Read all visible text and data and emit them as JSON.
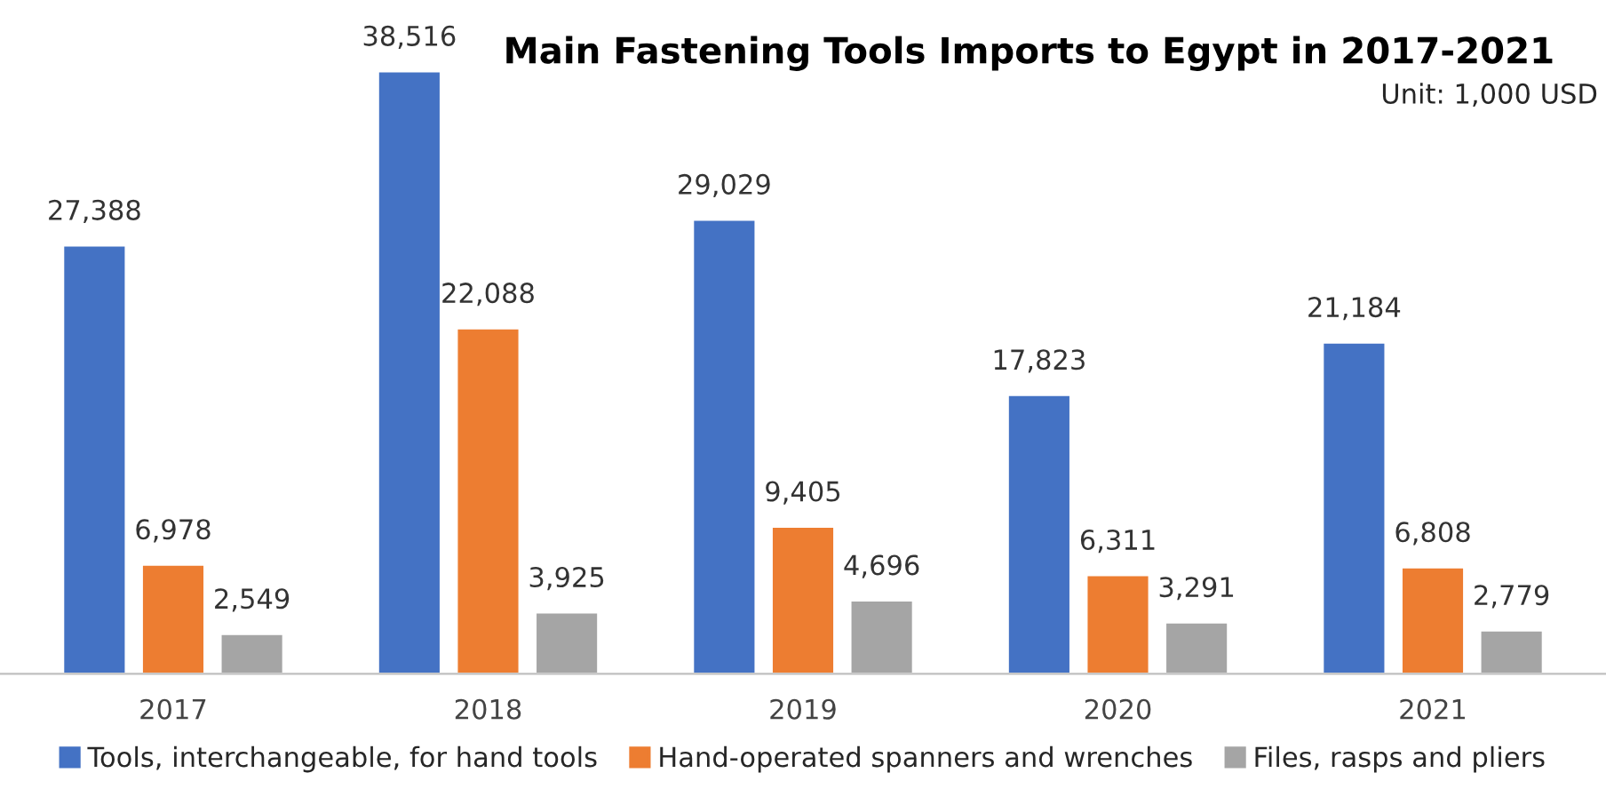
{
  "chart_data": {
    "type": "bar",
    "title": "Main Fastening Tools Imports to Egypt in 2017-2021",
    "annotations": [
      "Unit: 1,000 USD"
    ],
    "categories": [
      "2017",
      "2018",
      "2019",
      "2020",
      "2021"
    ],
    "series": [
      {
        "name": "Tools, interchangeable, for hand tools",
        "color": "#4472c4",
        "values": [
          27388,
          38516,
          29029,
          17823,
          21184
        ],
        "value_labels": [
          "27,388",
          "38,516",
          "29,029",
          "17,823",
          "21,184"
        ]
      },
      {
        "name": "Hand-operated spanners and wrenches",
        "color": "#ed7d31",
        "values": [
          6978,
          22088,
          9405,
          6311,
          6808
        ],
        "value_labels": [
          "6,978",
          "22,088",
          "9,405",
          "6,311",
          "6,808"
        ]
      },
      {
        "name": "Files, rasps and pliers",
        "color": "#a5a5a5",
        "values": [
          2549,
          3925,
          4696,
          3291,
          2779
        ],
        "value_labels": [
          "2,549",
          "3,925",
          "4,696",
          "3,291",
          "2,779"
        ]
      }
    ],
    "tick_labels": "x",
    "legend": "bottom",
    "grid": false
  }
}
